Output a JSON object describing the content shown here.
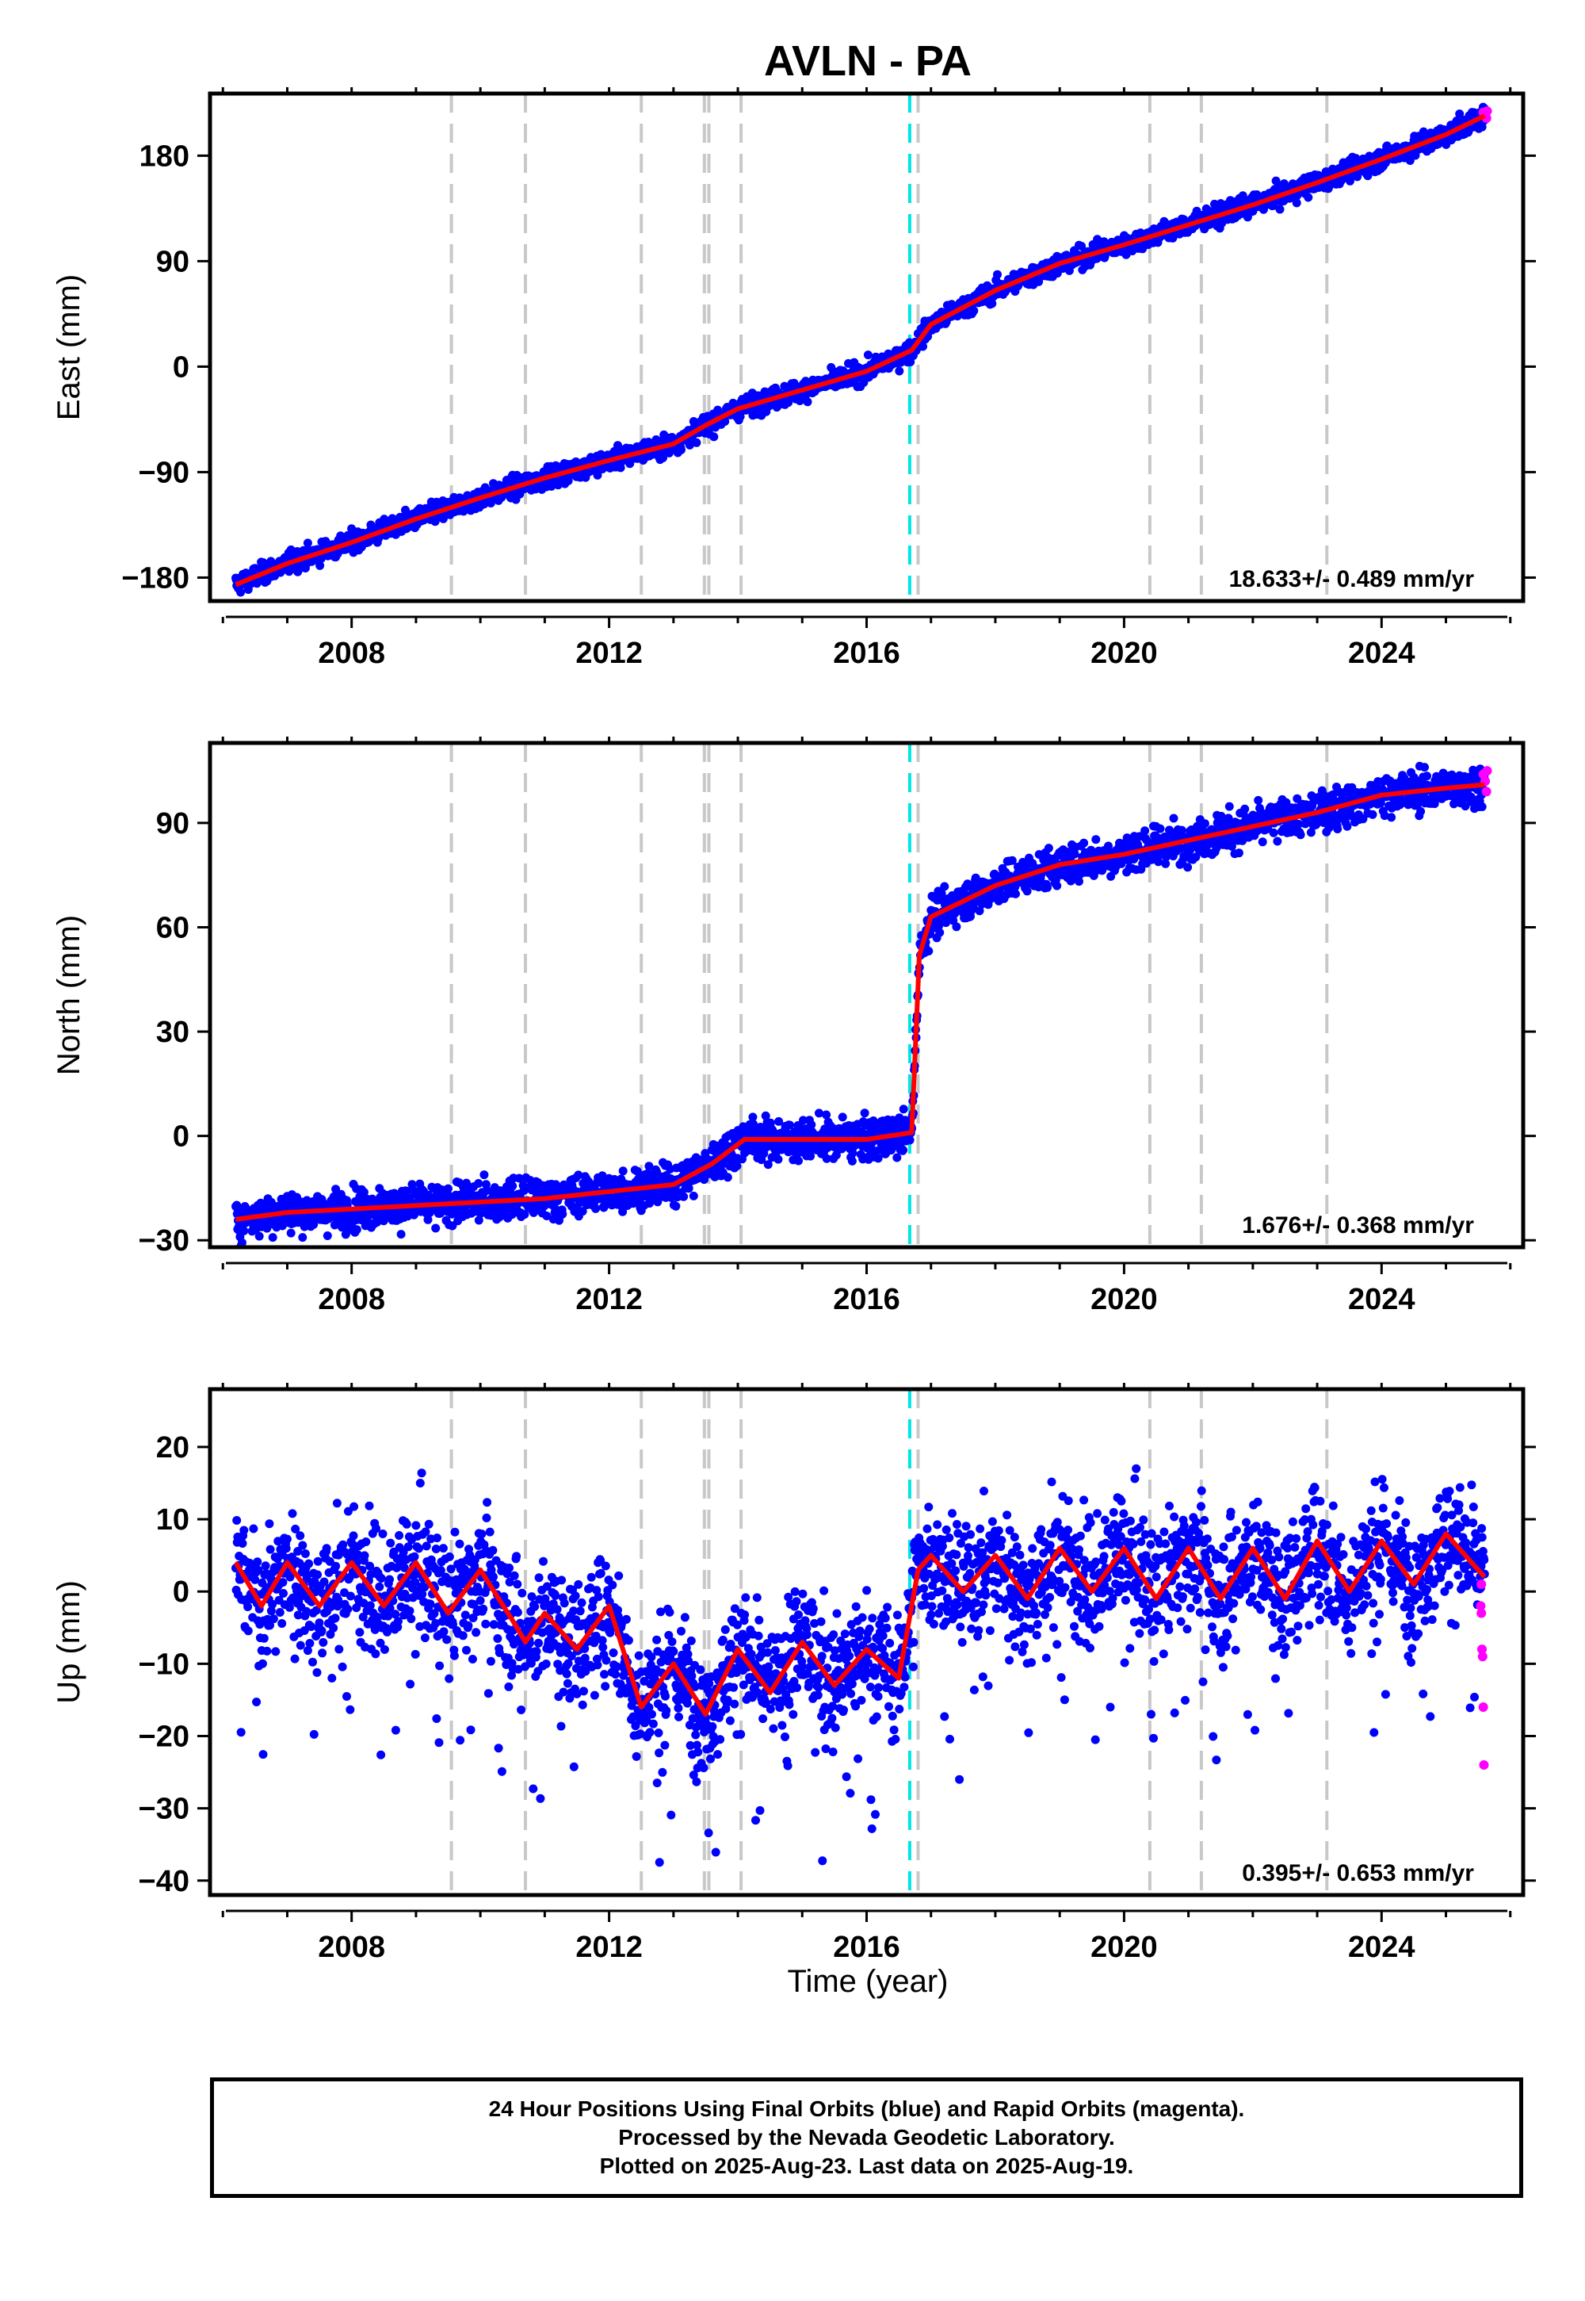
{
  "title": "AVLN - PA",
  "xlabel": "Time (year)",
  "footer": {
    "line1": "24 Hour Positions Using Final Orbits (blue) and Rapid Orbits (magenta).",
    "line2": "Processed by the Nevada Geodetic Laboratory.",
    "line3": "Plotted on 2025-Aug-23. Last data on 2025-Aug-19."
  },
  "colors": {
    "final_orbits": "#0000ff",
    "rapid_orbits": "#ff00ff",
    "model": "#ff0000",
    "equipment_change": "#c8c8c8",
    "earthquake": "#00e5e5"
  },
  "chart_data": [
    {
      "type": "scatter",
      "panel": "east",
      "title": "AVLN - PA",
      "ylabel": "East (mm)",
      "xlabel": "",
      "xlim": [
        2005.8,
        2026.2
      ],
      "ylim": [
        -200,
        233
      ],
      "xticks": [
        2008,
        2012,
        2016,
        2020,
        2024
      ],
      "yticks": [
        -180,
        -90,
        0,
        90,
        180
      ],
      "ytick_labels": [
        "−180",
        "−90",
        "0",
        "90",
        "180"
      ],
      "rate_text": "18.633+/- 0.489 mm/yr",
      "vlines_gray": [
        2009.55,
        2010.7,
        2012.5,
        2013.48,
        2013.55,
        2014.05,
        2016.8,
        2020.4,
        2021.2,
        2023.15
      ],
      "vline_cyan": [
        2016.67
      ],
      "series": [
        {
          "role": "model",
          "x": [
            2006.2,
            2007.0,
            2008.0,
            2009.0,
            2010.0,
            2011.0,
            2012.0,
            2013.0,
            2013.5,
            2014.0,
            2015.0,
            2016.0,
            2016.7,
            2017.0,
            2018.0,
            2019.0,
            2020.0,
            2021.0,
            2022.0,
            2023.0,
            2024.0,
            2025.0,
            2025.6
          ],
          "y": [
            -186,
            -168,
            -150,
            -130,
            -112,
            -95,
            -80,
            -66,
            -50,
            -36,
            -20,
            -4,
            14,
            36,
            65,
            88,
            104,
            121,
            138,
            157,
            177,
            198,
            214
          ]
        }
      ],
      "scatter_spread": 6
    },
    {
      "type": "scatter",
      "panel": "north",
      "ylabel": "North (mm)",
      "xlabel": "",
      "xlim": [
        2005.8,
        2026.2
      ],
      "ylim": [
        -32,
        113
      ],
      "xticks": [
        2008,
        2012,
        2016,
        2020,
        2024
      ],
      "yticks": [
        -30,
        0,
        30,
        60,
        90
      ],
      "ytick_labels": [
        "−30",
        "0",
        "30",
        "60",
        "90"
      ],
      "rate_text": "1.676+/- 0.368 mm/yr",
      "vlines_gray": [
        2009.55,
        2010.7,
        2012.5,
        2013.48,
        2013.55,
        2014.05,
        2016.8,
        2020.4,
        2021.2,
        2023.15
      ],
      "vline_cyan": [
        2016.67
      ],
      "series": [
        {
          "role": "model",
          "x": [
            2006.2,
            2007.0,
            2008.0,
            2009.0,
            2010.0,
            2011.0,
            2012.0,
            2013.0,
            2013.6,
            2014.1,
            2015.0,
            2016.0,
            2016.7,
            2016.82,
            2017.0,
            2018.0,
            2019.0,
            2020.0,
            2021.0,
            2022.0,
            2023.0,
            2024.0,
            2025.0,
            2025.6
          ],
          "y": [
            -24,
            -22,
            -21,
            -20,
            -19,
            -18,
            -16,
            -14,
            -8,
            -1,
            -1,
            -1,
            1,
            52,
            63,
            72,
            78,
            81,
            85,
            89,
            93,
            98,
            100,
            101
          ]
        }
      ],
      "scatter_spread": 4
    },
    {
      "type": "scatter",
      "panel": "up",
      "ylabel": "Up (mm)",
      "xlabel": "Time (year)",
      "xlim": [
        2005.8,
        2026.2
      ],
      "ylim": [
        -42,
        28
      ],
      "xticks": [
        2008,
        2012,
        2016,
        2020,
        2024
      ],
      "yticks": [
        -40,
        -30,
        -20,
        -10,
        0,
        10,
        20
      ],
      "ytick_labels": [
        "−40",
        "−30",
        "−20",
        "−10",
        "0",
        "10",
        "20"
      ],
      "rate_text": "0.395+/- 0.653 mm/yr",
      "vlines_gray": [
        2009.55,
        2010.7,
        2012.5,
        2013.48,
        2013.55,
        2014.05,
        2016.8,
        2020.4,
        2021.2,
        2023.15
      ],
      "vline_cyan": [
        2016.67
      ],
      "series": [
        {
          "role": "model",
          "x": [
            2006.2,
            2006.6,
            2007.0,
            2007.5,
            2008.0,
            2008.5,
            2009.0,
            2009.5,
            2010.0,
            2010.5,
            2010.7,
            2011.0,
            2011.5,
            2012.0,
            2012.5,
            2013.0,
            2013.5,
            2014.0,
            2014.5,
            2015.0,
            2015.5,
            2016.0,
            2016.5,
            2016.8,
            2017.0,
            2017.5,
            2018.0,
            2018.5,
            2019.0,
            2019.5,
            2020.0,
            2020.5,
            2021.0,
            2021.5,
            2022.0,
            2022.5,
            2023.0,
            2023.5,
            2024.0,
            2024.5,
            2025.0,
            2025.6
          ],
          "y": [
            4,
            -2,
            4,
            -2,
            4,
            -2,
            4,
            -3,
            3,
            -4,
            -7,
            -3,
            -8,
            -2,
            -16,
            -10,
            -17,
            -8,
            -14,
            -7,
            -13,
            -8,
            -12,
            3,
            5,
            0,
            5,
            -1,
            6,
            0,
            6,
            -1,
            6,
            -1,
            6,
            -1,
            7,
            0,
            7,
            1,
            8,
            2
          ]
        }
      ],
      "rapid_orbits": [
        {
          "x": 2025.55,
          "y": -3
        },
        {
          "x": 2025.56,
          "y": -8
        },
        {
          "x": 2025.57,
          "y": -9
        },
        {
          "x": 2025.58,
          "y": -16
        },
        {
          "x": 2025.59,
          "y": -24
        },
        {
          "x": 2025.55,
          "y": 1
        },
        {
          "x": 2025.54,
          "y": -2
        }
      ],
      "scatter_spread": 6
    }
  ]
}
